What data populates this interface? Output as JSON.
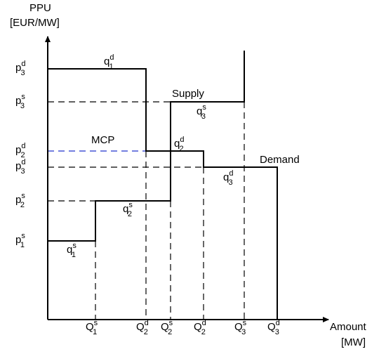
{
  "axes": {
    "y_label": [
      "PPU",
      "[EUR/MW]"
    ],
    "x_label": [
      "Amount",
      "[MW]"
    ]
  },
  "y_labels": [
    {
      "base": "p",
      "sup": "d",
      "sub": "3"
    },
    {
      "base": "p",
      "sup": "s",
      "sub": "3"
    },
    {
      "base": "p",
      "sup": "d",
      "sub": "2"
    },
    {
      "base": "p",
      "sup": "d",
      "sub": "3"
    },
    {
      "base": "p",
      "sup": "s",
      "sub": "2"
    },
    {
      "base": "p",
      "sup": "s",
      "sub": "1"
    }
  ],
  "x_labels": [
    {
      "base": "Q",
      "sup": "s",
      "sub": "1"
    },
    {
      "base": "Q",
      "sup": "d",
      "sub": "2"
    },
    {
      "base": "Q",
      "sup": "s",
      "sub": "2"
    },
    {
      "base": "Q",
      "sup": "d",
      "sub": "2"
    },
    {
      "base": "Q",
      "sup": "s",
      "sub": "3"
    },
    {
      "base": "Q",
      "sup": "d",
      "sub": "3"
    }
  ],
  "curve_labels": {
    "supply": "Supply",
    "demand": "Demand",
    "mcp": "MCP"
  },
  "step_labels": [
    {
      "base": "q",
      "sup": "d",
      "sub": "1"
    },
    {
      "base": "q",
      "sup": "s",
      "sub": "3"
    },
    {
      "base": "q",
      "sup": "d",
      "sub": "2"
    },
    {
      "base": "q",
      "sup": "d",
      "sub": "3"
    },
    {
      "base": "q",
      "sup": "s",
      "sub": "2"
    },
    {
      "base": "q",
      "sup": "s",
      "sub": "1"
    }
  ]
}
